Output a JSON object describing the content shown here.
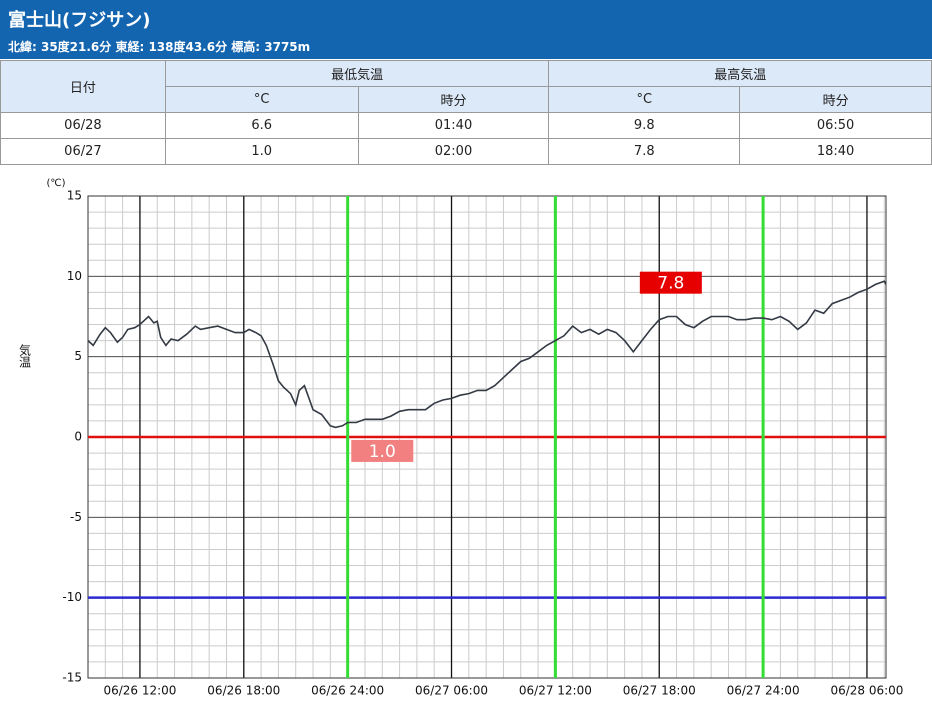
{
  "header": {
    "title": "富士山(フジサン)",
    "subtitle": "北緯: 35度21.6分 東経: 138度43.6分 標高: 3775m"
  },
  "table": {
    "head1": [
      "日付",
      "最低気温",
      "最高気温"
    ],
    "head2": [
      "°C",
      "時分",
      "°C",
      "時分"
    ],
    "rows": [
      [
        "06/28",
        "6.6",
        "01:40",
        "9.8",
        "06:50"
      ],
      [
        "06/27",
        "1.0",
        "02:00",
        "7.8",
        "18:40"
      ]
    ]
  },
  "chart_data": {
    "type": "line",
    "y_label": "気温",
    "y_unit": "(℃)",
    "color": "#333a44",
    "x": [
      9,
      9.3,
      9.7,
      10,
      10.3,
      10.7,
      11,
      11.3,
      11.7,
      12,
      12.3,
      12.5,
      12.8,
      13,
      13.2,
      13.5,
      13.8,
      14.2,
      14.7,
      15.2,
      15.5,
      16,
      16.5,
      17,
      17.5,
      18,
      18.3,
      18.7,
      19,
      19.3,
      19.7,
      20,
      20.3,
      20.7,
      21,
      21.2,
      21.5,
      21.8,
      22,
      22.5,
      23,
      23.3,
      23.7,
      24,
      24.5,
      25,
      25.5,
      26,
      26.5,
      27,
      27.5,
      28,
      28.5,
      29,
      29.5,
      30,
      30.5,
      31,
      31.5,
      32,
      32.5,
      33,
      33.5,
      34,
      34.5,
      35,
      35.5,
      36,
      36.5,
      37,
      37.5,
      38,
      38.5,
      39,
      39.5,
      40,
      40.5,
      41,
      41.5,
      42,
      42.5,
      43,
      43.5,
      44,
      44.5,
      45,
      45.5,
      46,
      46.5,
      47,
      47.5,
      48,
      48.5,
      49,
      49.5,
      50,
      50.5,
      51,
      51.5,
      52,
      52.5,
      53,
      53.5,
      54,
      54.5,
      55,
      55.1
    ],
    "values": [
      6.0,
      5.7,
      6.4,
      6.8,
      6.5,
      5.9,
      6.2,
      6.7,
      6.8,
      7.0,
      7.3,
      7.5,
      7.1,
      7.2,
      6.2,
      5.7,
      6.1,
      6.0,
      6.4,
      6.9,
      6.7,
      6.8,
      6.9,
      6.7,
      6.5,
      6.5,
      6.7,
      6.5,
      6.3,
      5.7,
      4.5,
      3.5,
      3.1,
      2.7,
      2.0,
      2.9,
      3.2,
      2.3,
      1.7,
      1.4,
      0.7,
      0.6,
      0.7,
      0.9,
      0.9,
      1.1,
      1.1,
      1.1,
      1.3,
      1.6,
      1.7,
      1.7,
      1.7,
      2.1,
      2.3,
      2.4,
      2.6,
      2.7,
      2.9,
      2.9,
      3.2,
      3.7,
      4.2,
      4.7,
      4.9,
      5.3,
      5.7,
      6.0,
      6.3,
      6.9,
      6.5,
      6.7,
      6.4,
      6.7,
      6.5,
      6.0,
      5.3,
      6.0,
      6.7,
      7.3,
      7.5,
      7.5,
      7.0,
      6.8,
      7.2,
      7.5,
      7.5,
      7.5,
      7.3,
      7.3,
      7.4,
      7.4,
      7.3,
      7.5,
      7.2,
      6.7,
      7.1,
      7.9,
      7.7,
      8.3,
      8.5,
      8.7,
      9.0,
      9.2,
      9.5,
      9.7,
      9.5
    ],
    "xlim": [
      9,
      55.1
    ],
    "ylim": [
      -15,
      15
    ],
    "xticks": [
      {
        "value": 12,
        "label": "06/26 12:00"
      },
      {
        "value": 18,
        "label": "06/26 18:00"
      },
      {
        "value": 24,
        "label": "06/26 24:00"
      },
      {
        "value": 30,
        "label": "06/27 06:00"
      },
      {
        "value": 36,
        "label": "06/27 12:00"
      },
      {
        "value": 42,
        "label": "06/27 18:00"
      },
      {
        "value": 48,
        "label": "06/27 24:00"
      },
      {
        "value": 54,
        "label": "06/28 06:00"
      }
    ],
    "yticks": [
      -15,
      -10,
      -5,
      0,
      5,
      10,
      15
    ],
    "minor_grid": {
      "x": 1,
      "y": 1
    },
    "h_lines": [
      {
        "value": 0,
        "color": "#e01010"
      },
      {
        "value": -10,
        "color": "#2a2ad0"
      }
    ],
    "v_lines": {
      "values": [
        24,
        36,
        48
      ],
      "color": "#33dd33"
    },
    "annotations": [
      {
        "label": "1.0",
        "value": 1.0,
        "x": 26,
        "color": "#f28080",
        "position": "below"
      },
      {
        "label": "7.8",
        "value": 7.8,
        "x": 42.67,
        "color": "#e60000",
        "position": "above"
      }
    ]
  }
}
